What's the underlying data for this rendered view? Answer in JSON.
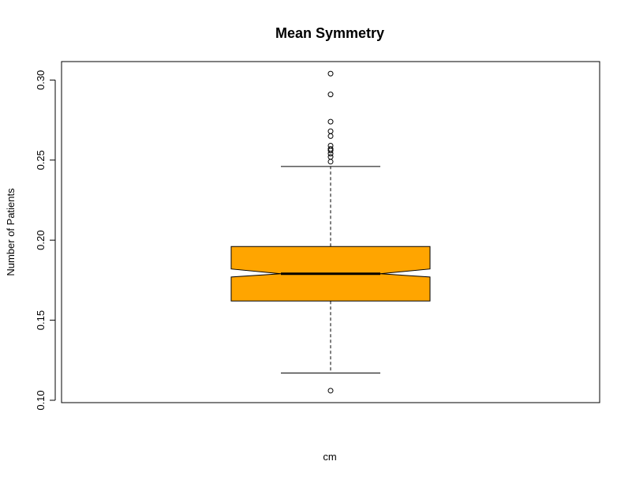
{
  "chart_data": {
    "type": "boxplot",
    "title": "Mean Symmetry",
    "xlabel": "cm",
    "ylabel": "Number of Patients",
    "ylim": [
      0.1,
      0.313
    ],
    "yticks": [
      "0.10",
      "0.15",
      "0.20",
      "0.25",
      "0.30"
    ],
    "grid": false,
    "notch": true,
    "box_color": "#FFA500",
    "stats": {
      "whisker_low": 0.117,
      "q1": 0.162,
      "median": 0.179,
      "q3": 0.196,
      "whisker_high": 0.246,
      "notch_low": 0.177,
      "notch_high": 0.182
    },
    "outliers": [
      0.106,
      0.249,
      0.252,
      0.254,
      0.256,
      0.257,
      0.259,
      0.265,
      0.268,
      0.274,
      0.291,
      0.304
    ]
  }
}
